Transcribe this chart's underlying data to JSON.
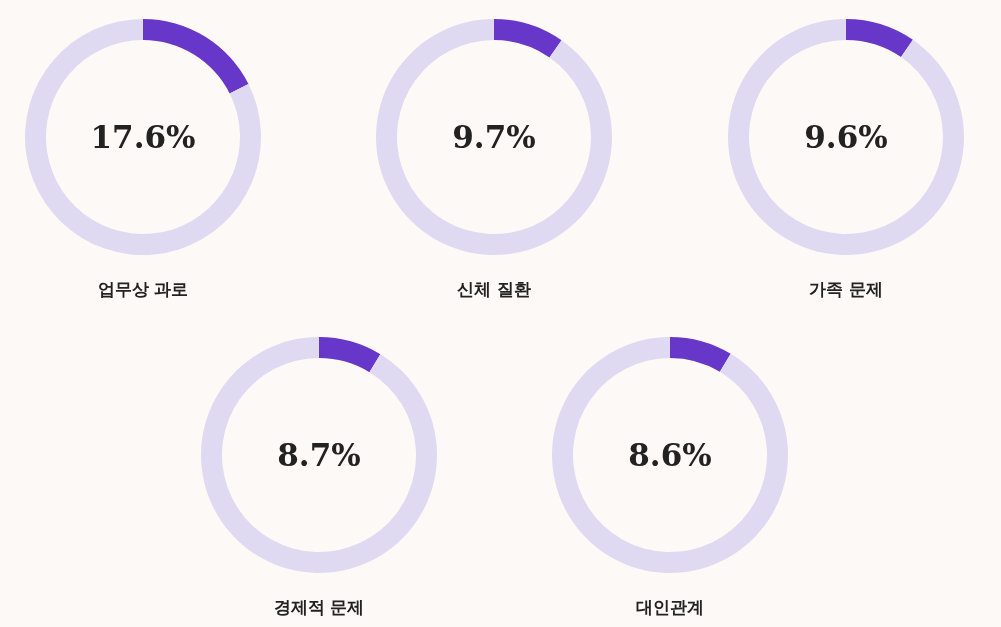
{
  "chart_data": [
    {
      "type": "donut",
      "title": "업무상 과로",
      "categories": [
        null,
        null
      ],
      "values": [
        17.6,
        82.4
      ],
      "colors": [
        "#6637c9",
        "#e0d9f2"
      ],
      "annotations": [
        "17.6%"
      ]
    },
    {
      "type": "donut",
      "title": "신체 질환",
      "categories": [
        null,
        null
      ],
      "values": [
        9.7,
        90.3
      ],
      "colors": [
        "#6637c9",
        "#e0d9f2"
      ],
      "annotations": [
        "9.7%"
      ]
    },
    {
      "type": "donut",
      "title": "가족 문제",
      "categories": [
        null,
        null
      ],
      "values": [
        9.6,
        90.4
      ],
      "colors": [
        "#6637c9",
        "#e0d9f2"
      ],
      "annotations": [
        "9.6%"
      ]
    },
    {
      "type": "donut",
      "title": "경제적 문제",
      "categories": [
        null,
        null
      ],
      "values": [
        8.7,
        91.3
      ],
      "colors": [
        "#6637c9",
        "#e0d9f2"
      ],
      "annotations": [
        "8.7%"
      ]
    },
    {
      "type": "donut",
      "title": "대인관계",
      "categories": [
        null,
        null
      ],
      "values": [
        8.6,
        91.4
      ],
      "colors": [
        "#6637c9",
        "#e0d9f2"
      ],
      "annotations": [
        "8.6%"
      ]
    }
  ]
}
